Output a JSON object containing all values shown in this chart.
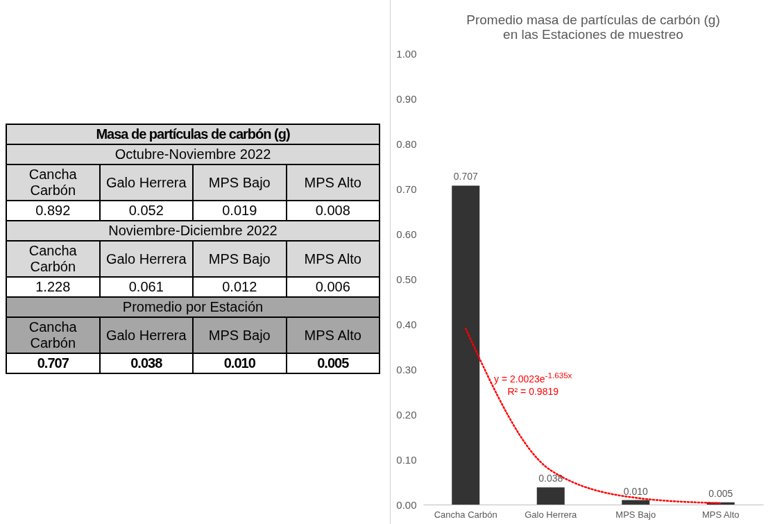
{
  "chart_data": [
    {
      "type": "other",
      "title": "Masa de partículas de carbón (g)",
      "annotations": [
        "Octubre-Noviembre 2022",
        "Cancha Carbón",
        "Galo Herrera",
        "MPS Bajo",
        "MPS Alto",
        "0.892",
        "0.052",
        "0.019",
        "0.008",
        "Noviembre-Diciembre 2022",
        "Cancha Carbón",
        "Galo Herrera",
        "MPS Bajo",
        "MPS Alto",
        "1.228",
        "0.061",
        "0.012",
        "0.006",
        "Promedio por Estación",
        "Cancha Carbón",
        "Galo Herrera",
        "MPS Bajo",
        "MPS Alto",
        "0.707",
        "0.038",
        "0.010",
        "0.005"
      ]
    },
    {
      "type": "bar",
      "title": "Promedio masa de partículas de carbón (g) en las Estaciones de muestreo",
      "categories": [
        "Cancha Carbón",
        "Galo Herrera",
        "MPS Bajo",
        "MPS Alto"
      ],
      "series": [
        {
          "type": "bar",
          "color": "#333333",
          "values": [
            0.707,
            0.038,
            0.01,
            0.005
          ],
          "value_labels": [
            "0.707",
            "0.038",
            "0.010",
            "0.005"
          ]
        },
        {
          "type": "line",
          "color": "#ff0000",
          "line_style": "dotted",
          "values": [
            0.39,
            0.076,
            0.015,
            0.003
          ]
        }
      ],
      "ylim": [
        0,
        1
      ],
      "yticks": [
        {
          "value": 0,
          "label": "0.00"
        },
        {
          "value": 0.1,
          "label": "0.10"
        },
        {
          "value": 0.2,
          "label": "0.20"
        },
        {
          "value": 0.3,
          "label": "0.30"
        },
        {
          "value": 0.4,
          "label": "0.40"
        },
        {
          "value": 0.5,
          "label": "0.50"
        },
        {
          "value": 0.6,
          "label": "0.60"
        },
        {
          "value": 0.7,
          "label": "0.70"
        },
        {
          "value": 0.8,
          "label": "0.80"
        },
        {
          "value": 0.9,
          "label": "0.90"
        },
        {
          "value": 1,
          "label": "1.00"
        }
      ],
      "grid": false,
      "annotations": [
        "y = 2.0023e$^{-1.635x}$",
        "R² = 0.9819"
      ]
    }
  ]
}
